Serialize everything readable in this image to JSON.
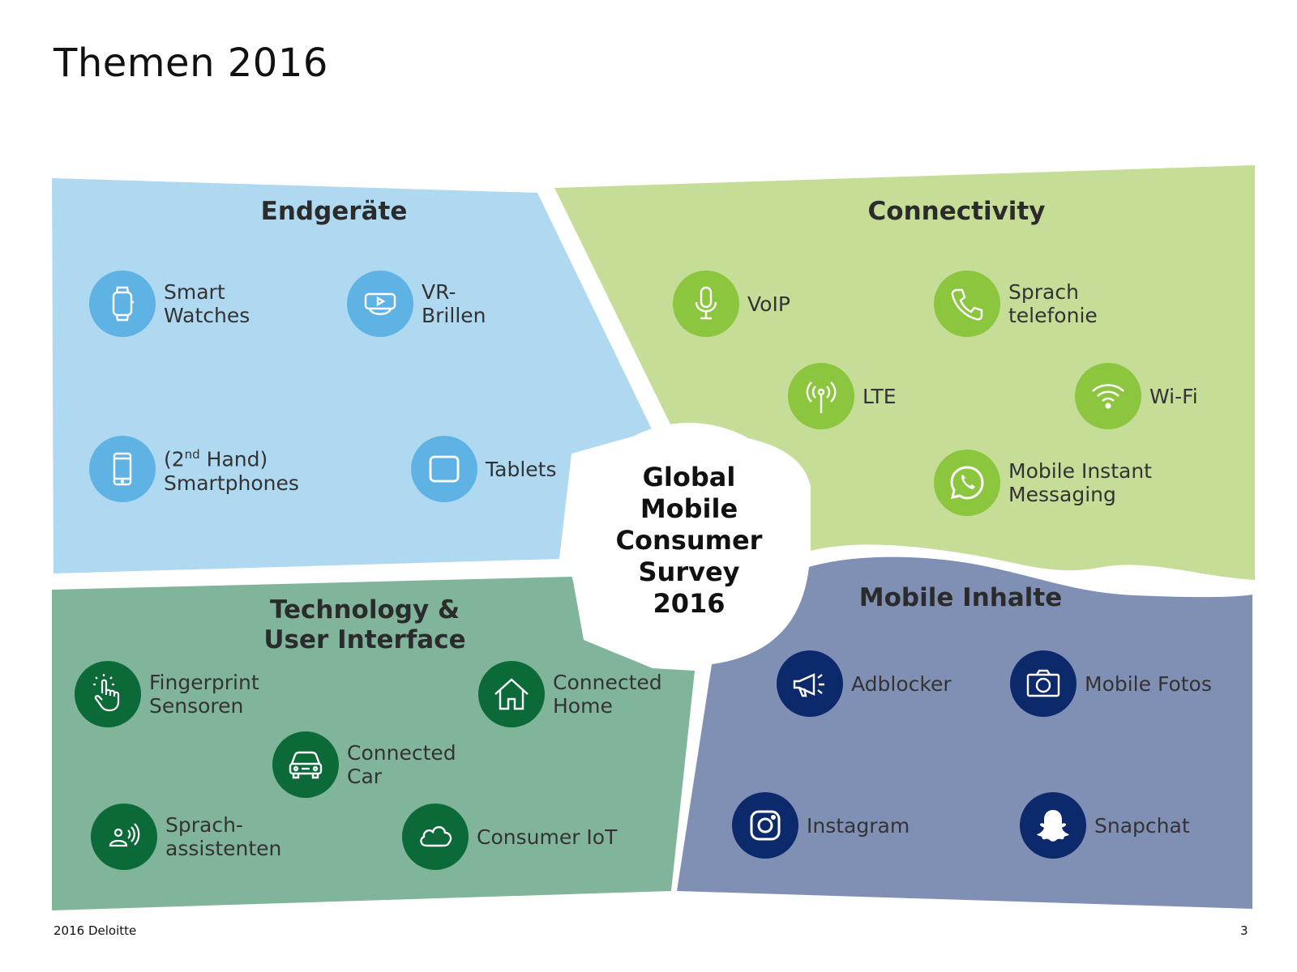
{
  "page_title": "Themen 2016",
  "center": "Global\nMobile\nConsumer\nSurvey\n2016",
  "colors": {
    "endgeraete_bg": "#afd8f1",
    "connectivity_bg": "#c5dd96",
    "technology_bg": "#80b59b",
    "inhalte_bg": "#8090b5",
    "blue_icon": "#5fb3e4",
    "green_icon": "#8cc63f",
    "dark_green_icon": "#0b6a38",
    "navy_icon": "#0c2a6b"
  },
  "quadrants": {
    "endgeraete": {
      "heading": "Endgeräte",
      "items": [
        {
          "label": "Smart\nWatches",
          "icon": "smartwatch-icon"
        },
        {
          "label": "VR-\nBrillen",
          "icon": "vr-headset-icon"
        },
        {
          "label_prefix": "(2",
          "label_sup": "nd",
          "label_suffix": " Hand)\nSmartphones",
          "icon": "smartphone-icon"
        },
        {
          "label": "Tablets",
          "icon": "tablet-icon"
        }
      ]
    },
    "connectivity": {
      "heading": "Connectivity",
      "items": [
        {
          "label": "VoIP",
          "icon": "microphone-icon"
        },
        {
          "label": "Sprach\ntelefonie",
          "icon": "phone-icon"
        },
        {
          "label": "LTE",
          "icon": "antenna-icon"
        },
        {
          "label": "Wi-Fi",
          "icon": "wifi-icon"
        },
        {
          "label": "Mobile Instant\nMessaging",
          "icon": "whatsapp-icon"
        }
      ]
    },
    "technology": {
      "heading": "Technology &\nUser Interface",
      "items": [
        {
          "label": "Fingerprint\nSensoren",
          "icon": "fingerprint-touch-icon"
        },
        {
          "label": "Connected\nHome",
          "icon": "house-icon"
        },
        {
          "label": "Connected\nCar",
          "icon": "car-icon"
        },
        {
          "label": "Sprach-\nassistenten",
          "icon": "voice-assistant-icon"
        },
        {
          "label": "Consumer IoT",
          "icon": "cloud-icon"
        }
      ]
    },
    "inhalte": {
      "heading": "Mobile Inhalte",
      "items": [
        {
          "label": "Adblocker",
          "icon": "megaphone-icon"
        },
        {
          "label": "Mobile Fotos",
          "icon": "camera-icon"
        },
        {
          "label": "Instagram",
          "icon": "instagram-icon"
        },
        {
          "label": "Snapchat",
          "icon": "snapchat-icon"
        }
      ]
    }
  },
  "footer": {
    "left": "2016 Deloitte",
    "right": "3"
  }
}
